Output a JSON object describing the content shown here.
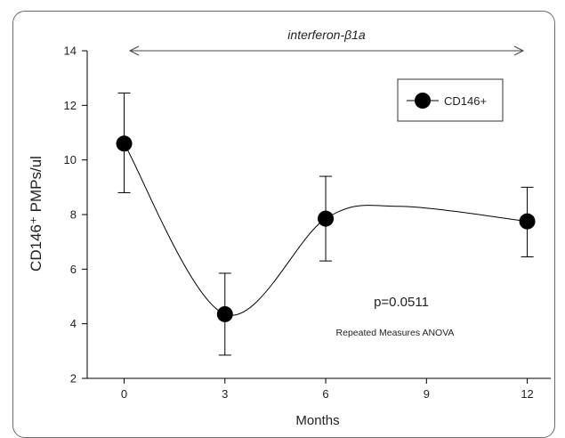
{
  "chart_data": {
    "type": "line",
    "title": "",
    "xlabel": "Months",
    "ylabel": "CD146⁺ PMPs/ul",
    "x": [
      0,
      3,
      6,
      12
    ],
    "xticks": [
      0,
      3,
      6,
      9,
      12
    ],
    "yticks": [
      2,
      4,
      6,
      8,
      10,
      12,
      14
    ],
    "xlim": [
      -1.1,
      12.7
    ],
    "ylim": [
      2,
      14
    ],
    "series": [
      {
        "name": "CD146+",
        "values": [
          10.6,
          4.35,
          7.85,
          7.75
        ],
        "error_upper": [
          12.45,
          5.85,
          9.4,
          9.0
        ],
        "error_lower": [
          8.8,
          2.85,
          6.3,
          6.45
        ]
      }
    ],
    "treatment_label": "interferon-β1a",
    "pvalue_label": "p=0.0511",
    "test_label": "Repeated Measures ANOVA",
    "legend_position": "top-right",
    "grid": false,
    "marker_color": "#000000"
  }
}
